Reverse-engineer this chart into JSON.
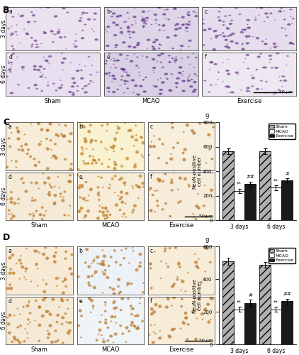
{
  "panel_C_chart": {
    "groups": [
      "3 days",
      "6 days"
    ],
    "sham_vals": [
      565,
      565
    ],
    "mcao_vals": [
      240,
      265
    ],
    "exercise_vals": [
      295,
      325
    ],
    "sham_err": [
      25,
      22
    ],
    "mcao_err": [
      18,
      20
    ],
    "exercise_err": [
      22,
      18
    ],
    "ylim": [
      0,
      800
    ],
    "yticks": [
      0,
      200,
      400,
      600,
      800
    ],
    "ylabel": "NeuN-positive\ncell number",
    "mcao_markers": [
      "**",
      "**"
    ],
    "exercise_markers": [
      "##",
      "#"
    ],
    "legend_labels": [
      "Sham",
      "MCAO",
      "Exercise"
    ]
  },
  "panel_D_chart": {
    "groups": [
      "3 days",
      "6 days"
    ],
    "sham_vals": [
      510,
      490
    ],
    "mcao_vals": [
      215,
      215
    ],
    "exercise_vals": [
      255,
      265
    ],
    "sham_err": [
      20,
      18
    ],
    "mcao_err": [
      15,
      15
    ],
    "exercise_err": [
      18,
      16
    ],
    "ylim": [
      0,
      600
    ],
    "yticks": [
      0,
      200,
      400,
      600
    ],
    "ylabel": "NeuN-positive\ncell number",
    "mcao_markers": [
      "**",
      "**"
    ],
    "exercise_markers": [
      "#",
      "##"
    ],
    "legend_labels": [
      "Sham",
      "MCAO",
      "Exercise"
    ]
  },
  "panel_labels": [
    "B",
    "C",
    "D"
  ],
  "row_labels": [
    "3 days",
    "6 days"
  ],
  "col_labels": [
    "Sham",
    "MCAO",
    "Exercise"
  ],
  "scale_bar": "50 μm",
  "bg_color": "#ffffff",
  "hatch_sham": "///",
  "color_sham": "#b0b0b0",
  "color_mcao": "#ffffff",
  "color_exercise": "#1a1a1a",
  "bar_width": 0.18
}
